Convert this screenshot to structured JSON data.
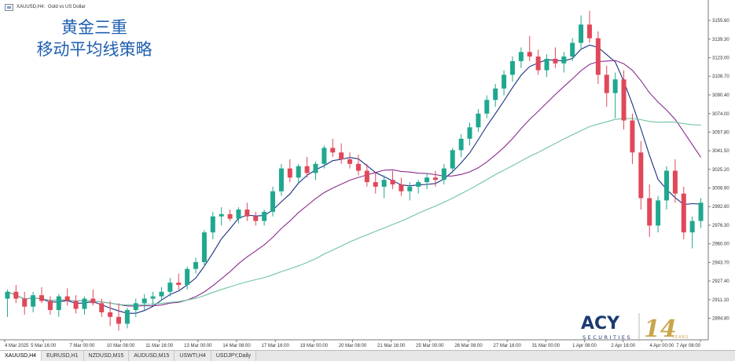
{
  "window": {
    "symbol_title": "XAUUSD,H4:",
    "description": "Gold vs US Dollar"
  },
  "overlay": {
    "line1": "黄金三重",
    "line2": "移动平均线策略"
  },
  "tabs": [
    {
      "label": "XAUUSD,H4",
      "active": true
    },
    {
      "label": "EURUSD,H1",
      "active": false
    },
    {
      "label": "NZDUSD,M15",
      "active": false
    },
    {
      "label": "AUDUSD,M15",
      "active": false
    },
    {
      "label": "USWTI,H4",
      "active": false
    },
    {
      "label": "USDJPY,Daily",
      "active": false
    }
  ],
  "logo": {
    "brand": "ACY",
    "sub": "SECURITIES",
    "years_number": "14",
    "years_text": "YEARS",
    "brand_color": "#1c3b74",
    "gold_color": "#c9a64e"
  },
  "chart_data": {
    "type": "candlestick",
    "symbol": "XAUUSD",
    "timeframe": "H4",
    "y_ticks": [
      "3155.60",
      "3139.30",
      "3123.00",
      "3106.70",
      "3090.40",
      "3074.00",
      "3057.80",
      "3041.50",
      "3025.20",
      "3008.90",
      "2992.60",
      "2976.30",
      "2960.00",
      "2943.70",
      "2927.40",
      "2911.10",
      "2894.80"
    ],
    "y_range": [
      2878.0,
      3168.0
    ],
    "x_ticks": [
      "4 Mar 2025",
      "5 Mar 16:00",
      "7 Mar 00:00",
      "10 Mar 08:00",
      "11 Mar 16:00",
      "13 Mar 00:00",
      "14 Mar 08:00",
      "17 Mar 16:00",
      "19 Mar 00:00",
      "20 Mar 08:00",
      "21 Mar 16:00",
      "25 Mar 00:00",
      "26 Mar 08:00",
      "27 Mar 16:00",
      "31 Mar 00:00",
      "1 Apr 08:00",
      "2 Apr 16:00",
      "4 Apr 00:00",
      "7 Apr 08:00"
    ],
    "colors": {
      "up": "#1fa88f",
      "down": "#e0485a",
      "ma_fast": "#1b2f80",
      "ma_mid": "#8a2b8f",
      "ma_slow": "#6fc3a0"
    },
    "candles": [
      [
        2912,
        2920,
        2896,
        2918
      ],
      [
        2918,
        2924,
        2908,
        2912
      ],
      [
        2912,
        2918,
        2898,
        2905
      ],
      [
        2905,
        2918,
        2900,
        2915
      ],
      [
        2915,
        2922,
        2908,
        2910
      ],
      [
        2910,
        2914,
        2898,
        2902
      ],
      [
        2902,
        2916,
        2896,
        2914
      ],
      [
        2914,
        2921,
        2906,
        2910
      ],
      [
        2910,
        2915,
        2899,
        2903
      ],
      [
        2903,
        2914,
        2898,
        2912
      ],
      [
        2912,
        2920,
        2906,
        2908
      ],
      [
        2908,
        2912,
        2896,
        2900
      ],
      [
        2900,
        2910,
        2888,
        2896
      ],
      [
        2896,
        2908,
        2884,
        2890
      ],
      [
        2890,
        2904,
        2886,
        2902
      ],
      [
        2902,
        2912,
        2896,
        2908
      ],
      [
        2908,
        2916,
        2902,
        2912
      ],
      [
        2912,
        2918,
        2906,
        2914
      ],
      [
        2914,
        2922,
        2910,
        2918
      ],
      [
        2918,
        2930,
        2914,
        2926
      ],
      [
        2926,
        2934,
        2920,
        2924
      ],
      [
        2924,
        2940,
        2920,
        2938
      ],
      [
        2938,
        2948,
        2934,
        2944
      ],
      [
        2944,
        2972,
        2940,
        2970
      ],
      [
        2970,
        2988,
        2964,
        2984
      ],
      [
        2984,
        2992,
        2976,
        2986
      ],
      [
        2986,
        2990,
        2980,
        2982
      ],
      [
        2982,
        2992,
        2978,
        2990
      ],
      [
        2990,
        2996,
        2980,
        2984
      ],
      [
        2984,
        2988,
        2976,
        2980
      ],
      [
        2980,
        2990,
        2976,
        2988
      ],
      [
        2988,
        3010,
        2984,
        3006
      ],
      [
        3006,
        3030,
        3002,
        3026
      ],
      [
        3026,
        3034,
        3014,
        3018
      ],
      [
        3018,
        3030,
        3012,
        3028
      ],
      [
        3028,
        3036,
        3018,
        3022
      ],
      [
        3022,
        3032,
        3016,
        3030
      ],
      [
        3030,
        3046,
        3026,
        3044
      ],
      [
        3044,
        3052,
        3036,
        3040
      ],
      [
        3040,
        3048,
        3030,
        3034
      ],
      [
        3034,
        3040,
        3026,
        3030
      ],
      [
        3030,
        3038,
        3020,
        3024
      ],
      [
        3024,
        3030,
        3010,
        3014
      ],
      [
        3014,
        3022,
        3004,
        3010
      ],
      [
        3010,
        3020,
        3000,
        3016
      ],
      [
        3016,
        3024,
        3008,
        3012
      ],
      [
        3012,
        3018,
        3002,
        3006
      ],
      [
        3006,
        3014,
        2998,
        3010
      ],
      [
        3010,
        3016,
        3004,
        3014
      ],
      [
        3014,
        3022,
        3008,
        3018
      ],
      [
        3018,
        3024,
        3010,
        3016
      ],
      [
        3016,
        3030,
        3012,
        3026
      ],
      [
        3026,
        3044,
        3022,
        3042
      ],
      [
        3042,
        3056,
        3036,
        3052
      ],
      [
        3052,
        3066,
        3046,
        3062
      ],
      [
        3062,
        3078,
        3058,
        3074
      ],
      [
        3074,
        3090,
        3070,
        3086
      ],
      [
        3086,
        3100,
        3080,
        3096
      ],
      [
        3096,
        3112,
        3090,
        3108
      ],
      [
        3108,
        3124,
        3102,
        3120
      ],
      [
        3120,
        3132,
        3114,
        3128
      ],
      [
        3128,
        3142,
        3120,
        3124
      ],
      [
        3124,
        3130,
        3108,
        3112
      ],
      [
        3112,
        3126,
        3106,
        3122
      ],
      [
        3122,
        3132,
        3114,
        3118
      ],
      [
        3118,
        3128,
        3110,
        3124
      ],
      [
        3124,
        3140,
        3120,
        3136
      ],
      [
        3136,
        3160,
        3130,
        3152
      ],
      [
        3152,
        3164,
        3136,
        3140
      ],
      [
        3140,
        3146,
        3100,
        3108
      ],
      [
        3108,
        3116,
        3080,
        3092
      ],
      [
        3092,
        3110,
        3070,
        3104
      ],
      [
        3104,
        3112,
        3060,
        3068
      ],
      [
        3068,
        3074,
        3030,
        3040
      ],
      [
        3040,
        3050,
        2990,
        3000
      ],
      [
        3000,
        3012,
        2966,
        2976
      ],
      [
        2976,
        3002,
        2970,
        2998
      ],
      [
        2998,
        3028,
        2990,
        3024
      ],
      [
        3024,
        3034,
        2996,
        3004
      ],
      [
        3004,
        3010,
        2964,
        2970
      ],
      [
        2970,
        2984,
        2956,
        2980
      ],
      [
        2980,
        3000,
        2974,
        2996
      ]
    ]
  }
}
